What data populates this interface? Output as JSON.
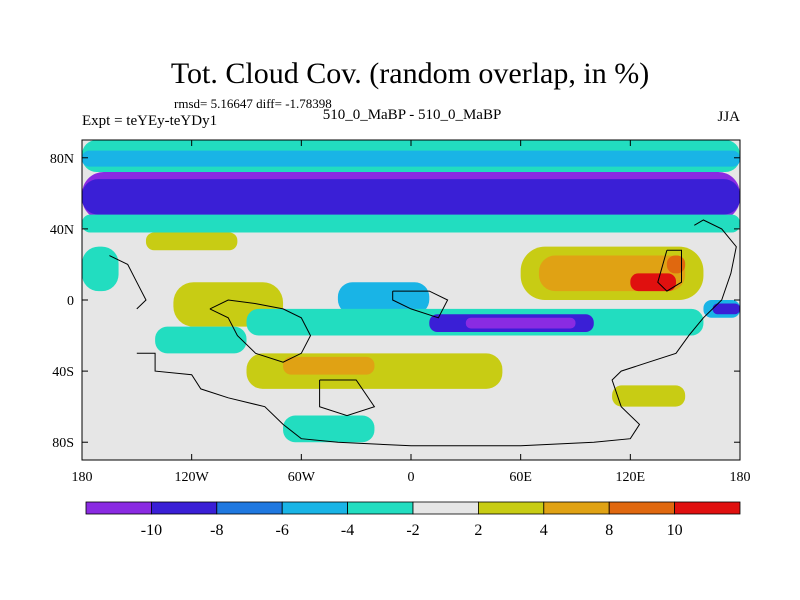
{
  "chart_data": {
    "type": "heatmap",
    "title": "Tot. Cloud Cov. (random overlap, in %)",
    "stats_line": "rmsd= 5.16647 diff= -1.78398",
    "left_label": "Expt = teYEy-teYDy1",
    "center_label": "510_0_MaBP - 510_0_MaBP",
    "right_label": "JJA",
    "x_ticks": [
      {
        "value": -180,
        "label": "180"
      },
      {
        "value": -120,
        "label": "120W"
      },
      {
        "value": -60,
        "label": "60W"
      },
      {
        "value": 0,
        "label": "0"
      },
      {
        "value": 60,
        "label": "60E"
      },
      {
        "value": 120,
        "label": "120E"
      },
      {
        "value": 180,
        "label": "180"
      }
    ],
    "y_ticks": [
      {
        "value": 80,
        "label": "80N"
      },
      {
        "value": 40,
        "label": "40N"
      },
      {
        "value": 0,
        "label": "0"
      },
      {
        "value": -40,
        "label": "40S"
      },
      {
        "value": -80,
        "label": "80S"
      }
    ],
    "xlim": [
      -180,
      180
    ],
    "ylim": [
      -90,
      90
    ],
    "colorbar": {
      "levels": [
        "-10",
        "-8",
        "-6",
        "-4",
        "-2",
        "2",
        "4",
        "8",
        "10"
      ],
      "colors": [
        "#8a2be2",
        "#3a1fd6",
        "#1f78e0",
        "#19b4e6",
        "#22ddc0",
        "#e6e6e6",
        "#c8cc14",
        "#e0a214",
        "#e0680f",
        "#e0100f"
      ]
    },
    "regions": [
      {
        "level": 0,
        "lon": [
          -180,
          180
        ],
        "lat": [
          45,
          72
        ]
      },
      {
        "level": 1,
        "lon": [
          -180,
          180
        ],
        "lat": [
          48,
          68
        ]
      },
      {
        "level": 4,
        "lon": [
          -180,
          180
        ],
        "lat": [
          72,
          90
        ]
      },
      {
        "level": 3,
        "lon": [
          -180,
          180
        ],
        "lat": [
          75,
          84
        ]
      },
      {
        "level": 4,
        "lon": [
          -180,
          180
        ],
        "lat": [
          38,
          48
        ]
      },
      {
        "level": 6,
        "lon": [
          -145,
          -95
        ],
        "lat": [
          28,
          38
        ]
      },
      {
        "level": 7,
        "lon": [
          -125,
          -80
        ],
        "lat": [
          -10,
          5
        ]
      },
      {
        "level": 6,
        "lon": [
          -130,
          -70
        ],
        "lat": [
          -15,
          10
        ]
      },
      {
        "level": 3,
        "lon": [
          -40,
          10
        ],
        "lat": [
          -8,
          10
        ]
      },
      {
        "level": 4,
        "lon": [
          -90,
          160
        ],
        "lat": [
          -20,
          -5
        ]
      },
      {
        "level": 1,
        "lon": [
          10,
          100
        ],
        "lat": [
          -18,
          -8
        ]
      },
      {
        "level": 0,
        "lon": [
          30,
          90
        ],
        "lat": [
          -16,
          -10
        ]
      },
      {
        "level": 6,
        "lon": [
          60,
          160
        ],
        "lat": [
          0,
          30
        ]
      },
      {
        "level": 7,
        "lon": [
          70,
          150
        ],
        "lat": [
          5,
          25
        ]
      },
      {
        "level": 9,
        "lon": [
          120,
          145
        ],
        "lat": [
          5,
          15
        ]
      },
      {
        "level": 8,
        "lon": [
          140,
          150
        ],
        "lat": [
          15,
          25
        ]
      },
      {
        "level": 6,
        "lon": [
          -90,
          50
        ],
        "lat": [
          -50,
          -30
        ]
      },
      {
        "level": 7,
        "lon": [
          -70,
          -20
        ],
        "lat": [
          -42,
          -32
        ]
      },
      {
        "level": 4,
        "lon": [
          -140,
          -90
        ],
        "lat": [
          -30,
          -15
        ]
      },
      {
        "level": 4,
        "lon": [
          -70,
          -20
        ],
        "lat": [
          -80,
          -65
        ]
      },
      {
        "level": 6,
        "lon": [
          110,
          150
        ],
        "lat": [
          -60,
          -48
        ]
      },
      {
        "level": 3,
        "lon": [
          160,
          180
        ],
        "lat": [
          -10,
          0
        ]
      },
      {
        "level": 1,
        "lon": [
          165,
          180
        ],
        "lat": [
          -8,
          -2
        ]
      },
      {
        "level": 4,
        "lon": [
          -180,
          -160
        ],
        "lat": [
          5,
          30
        ]
      }
    ],
    "coast": [
      [
        [
          -150,
          -30
        ],
        [
          -140,
          -30
        ],
        [
          -140,
          -40
        ],
        [
          -120,
          -42
        ],
        [
          -115,
          -50
        ],
        [
          -100,
          -55
        ],
        [
          -80,
          -60
        ],
        [
          -70,
          -70
        ],
        [
          -60,
          -78
        ],
        [
          -40,
          -80
        ],
        [
          0,
          -82
        ],
        [
          60,
          -82
        ],
        [
          100,
          -80
        ],
        [
          120,
          -78
        ],
        [
          125,
          -70
        ],
        [
          115,
          -60
        ],
        [
          110,
          -45
        ],
        [
          115,
          -40
        ],
        [
          130,
          -35
        ],
        [
          145,
          -30
        ],
        [
          152,
          -20
        ],
        [
          160,
          -10
        ],
        [
          170,
          0
        ],
        [
          175,
          15
        ],
        [
          178,
          30
        ],
        [
          170,
          40
        ],
        [
          160,
          45
        ],
        [
          155,
          42
        ]
      ],
      [
        [
          -110,
          -5
        ],
        [
          -100,
          -10
        ],
        [
          -95,
          -20
        ],
        [
          -85,
          -30
        ],
        [
          -70,
          -35
        ],
        [
          -60,
          -30
        ],
        [
          -55,
          -20
        ],
        [
          -60,
          -10
        ],
        [
          -70,
          -5
        ],
        [
          -85,
          -2
        ],
        [
          -100,
          0
        ],
        [
          -110,
          -5
        ]
      ],
      [
        [
          -50,
          -45
        ],
        [
          -30,
          -45
        ],
        [
          -20,
          -60
        ],
        [
          -35,
          -65
        ],
        [
          -50,
          -60
        ],
        [
          -50,
          -45
        ]
      ],
      [
        [
          -10,
          5
        ],
        [
          10,
          5
        ],
        [
          20,
          0
        ],
        [
          15,
          -10
        ],
        [
          0,
          -5
        ],
        [
          -10,
          0
        ],
        [
          -10,
          5
        ]
      ],
      [
        [
          140,
          28
        ],
        [
          148,
          28
        ],
        [
          148,
          10
        ],
        [
          140,
          5
        ],
        [
          135,
          10
        ],
        [
          140,
          28
        ]
      ],
      [
        [
          -165,
          25
        ],
        [
          -155,
          20
        ],
        [
          -150,
          10
        ],
        [
          -145,
          0
        ],
        [
          -150,
          -5
        ]
      ]
    ]
  }
}
